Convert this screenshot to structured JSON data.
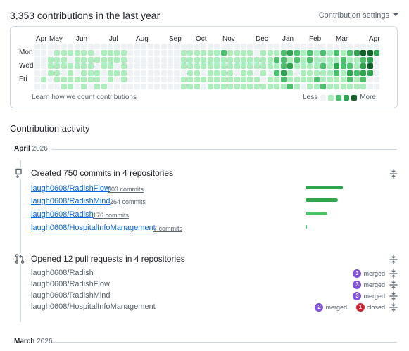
{
  "header": {
    "title": "3,353 contributions in the last year",
    "settings_label": "Contribution settings"
  },
  "calendar": {
    "months": [
      "Apr",
      "May",
      "Jun",
      "Jul",
      "Aug",
      "Sep",
      "Oct",
      "Nov",
      "Dec",
      "Jan",
      "Feb",
      "Mar",
      "Apr"
    ],
    "day_labels": [
      "Mon",
      "Wed",
      "Fri"
    ],
    "learn_link": "Learn how we count contributions",
    "legend_less": "Less",
    "legend_more": "More",
    "level_colors": [
      "#eff2f5",
      "#aceebb",
      "#4ac26b",
      "#2da44e",
      "#116329"
    ],
    "weeks": [
      "0000000",
      "0000010",
      "0011100",
      "0111110",
      "0111011",
      "0101111",
      "0111010",
      "0111111",
      "0111110",
      "0010111",
      "0111001",
      "0111110",
      "0110100",
      "0111110",
      "0000000",
      "0000000",
      "0000000",
      "0000000",
      "0000000",
      "0000000",
      "0000000",
      "0000000",
      "0111011",
      "0111111",
      "0111111",
      "0111010",
      "0111111",
      "0111111",
      "0211111",
      "0111111",
      "0111011",
      "0111111",
      "0111111",
      "0011011",
      "0111101",
      "0111011",
      "0121211",
      "0222321",
      "0313112",
      "0221011",
      "0111110",
      "0221111",
      "0111121",
      "0212112",
      "0111111",
      "0213211",
      "0122111",
      "0212321",
      "0311211",
      "0423321",
      "0434300",
      "0300000"
    ]
  },
  "activity": {
    "title": "Contribution activity",
    "months": [
      {
        "month": "April",
        "year": "2026"
      },
      {
        "month": "March",
        "year": "2026"
      }
    ],
    "commits": {
      "title": "Created 750 commits in 4 repositories",
      "repos": [
        {
          "name": "laugh0608/RadishFlow",
          "count": "303 commits",
          "share": 0.404
        },
        {
          "name": "laugh0608/RadishMind",
          "count": "264 commits",
          "share": 0.352
        },
        {
          "name": "laugh0608/Radish",
          "count": "176 commits",
          "share": 0.235
        },
        {
          "name": "laugh0608/HospitalInfoManagement",
          "count": "7 commits",
          "share": 0.009
        }
      ],
      "bar_colors": [
        "#2da44e",
        "#2da44e",
        "#4ac26b",
        "#4ac26b"
      ]
    },
    "pull_requests": {
      "title": "Opened 12 pull requests in 4 repositories",
      "repos": [
        {
          "name": "laugh0608/Radish",
          "merged": "3",
          "merged_label": "merged"
        },
        {
          "name": "laugh0608/RadishFlow",
          "merged": "3",
          "merged_label": "merged"
        },
        {
          "name": "laugh0608/RadishMind",
          "merged": "3",
          "merged_label": "merged"
        },
        {
          "name": "laugh0608/HospitalInfoManagement",
          "merged": "2",
          "merged_label": "merged",
          "closed": "1",
          "closed_label": "closed"
        }
      ]
    }
  }
}
